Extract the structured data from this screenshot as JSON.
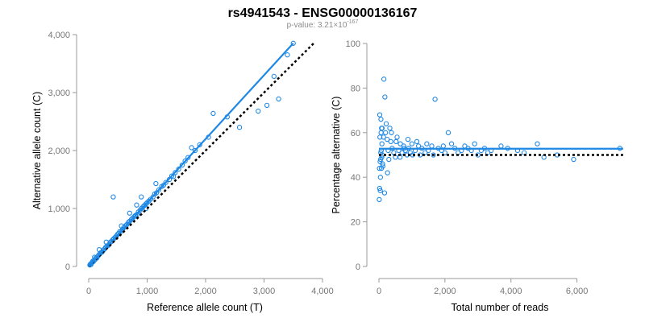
{
  "title": "rs4941543 - ENSG00000136167",
  "pvalue": {
    "prefix": "p-value: 3.21×10",
    "exponent": "-167"
  },
  "colors": {
    "points": "#1e88e5",
    "reference": "#000000",
    "ticks": "#777777"
  },
  "chart_data": [
    {
      "type": "scatter",
      "xlabel": "Reference allele count (T)",
      "ylabel": "Alternative allele count (C)",
      "xlim": [
        0,
        4000
      ],
      "ylim": [
        0,
        4000
      ],
      "xticks": [
        0,
        1000,
        2000,
        3000,
        4000
      ],
      "yticks": [
        0,
        1000,
        2000,
        3000,
        4000
      ],
      "xtick_labels": [
        "0",
        "1,000",
        "2,000",
        "3,000",
        "4,000"
      ],
      "ytick_labels": [
        "0",
        "1,000",
        "2,000",
        "3,000",
        "4,000"
      ],
      "fit_line": {
        "slope": 1.1,
        "intercept": 0,
        "x_range": [
          0,
          3500
        ]
      },
      "reference_line": {
        "slope": 1.0,
        "intercept": 0,
        "x_range": [
          0,
          3850
        ]
      },
      "points": [
        [
          20,
          25
        ],
        [
          30,
          40
        ],
        [
          40,
          35
        ],
        [
          50,
          60
        ],
        [
          60,
          70
        ],
        [
          70,
          90
        ],
        [
          80,
          85
        ],
        [
          95,
          110
        ],
        [
          110,
          120
        ],
        [
          125,
          150
        ],
        [
          140,
          145
        ],
        [
          160,
          180
        ],
        [
          175,
          200
        ],
        [
          190,
          215
        ],
        [
          210,
          240
        ],
        [
          230,
          250
        ],
        [
          250,
          280
        ],
        [
          270,
          300
        ],
        [
          290,
          330
        ],
        [
          310,
          350
        ],
        [
          330,
          360
        ],
        [
          350,
          380
        ],
        [
          370,
          420
        ],
        [
          390,
          430
        ],
        [
          410,
          460
        ],
        [
          430,
          480
        ],
        [
          450,
          500
        ],
        [
          470,
          520
        ],
        [
          490,
          550
        ],
        [
          510,
          570
        ],
        [
          530,
          600
        ],
        [
          560,
          610
        ],
        [
          580,
          640
        ],
        [
          600,
          670
        ],
        [
          630,
          700
        ],
        [
          650,
          720
        ],
        [
          680,
          760
        ],
        [
          700,
          780
        ],
        [
          730,
          810
        ],
        [
          750,
          830
        ],
        [
          780,
          860
        ],
        [
          800,
          880
        ],
        [
          830,
          900
        ],
        [
          850,
          940
        ],
        [
          880,
          970
        ],
        [
          900,
          1000
        ],
        [
          930,
          1030
        ],
        [
          950,
          1050
        ],
        [
          980,
          1080
        ],
        [
          1000,
          1100
        ],
        [
          1030,
          1130
        ],
        [
          1060,
          1160
        ],
        [
          1100,
          1200
        ],
        [
          1130,
          1250
        ],
        [
          1160,
          1270
        ],
        [
          1200,
          1320
        ],
        [
          1250,
          1380
        ],
        [
          1280,
          1400
        ],
        [
          1320,
          1450
        ],
        [
          1380,
          1500
        ],
        [
          1420,
          1560
        ],
        [
          1480,
          1620
        ],
        [
          1540,
          1680
        ],
        [
          1600,
          1750
        ],
        [
          1650,
          1820
        ],
        [
          1700,
          1880
        ],
        [
          1760,
          2050
        ],
        [
          1820,
          2000
        ],
        [
          1900,
          2100
        ],
        [
          2050,
          2230
        ],
        [
          100,
          160
        ],
        [
          180,
          290
        ],
        [
          300,
          420
        ],
        [
          420,
          1200
        ],
        [
          560,
          700
        ],
        [
          900,
          1200
        ],
        [
          1150,
          1430
        ],
        [
          1450,
          1550
        ],
        [
          700,
          920
        ],
        [
          820,
          1060
        ],
        [
          2130,
          2640
        ],
        [
          2370,
          2580
        ],
        [
          2580,
          2400
        ],
        [
          2900,
          2680
        ],
        [
          3050,
          2780
        ],
        [
          3170,
          3280
        ],
        [
          3250,
          2890
        ],
        [
          3400,
          3650
        ],
        [
          3500,
          3850
        ],
        [
          980,
          1000
        ]
      ]
    },
    {
      "type": "scatter",
      "xlabel": "Total number of reads",
      "ylabel": "Percentage alternative (C)",
      "xlim": [
        0,
        7500
      ],
      "ylim": [
        0,
        100
      ],
      "xticks": [
        0,
        2000,
        4000,
        6000
      ],
      "yticks": [
        0,
        20,
        40,
        60,
        80,
        100
      ],
      "xtick_labels": [
        "0",
        "2,000",
        "4,000",
        "6,000"
      ],
      "ytick_labels": [
        "0",
        "20",
        "40",
        "60",
        "80",
        "100"
      ],
      "fit_line": {
        "y": 52.8,
        "x_range": [
          0,
          7400
        ]
      },
      "reference_line": {
        "y": 50,
        "x_range": [
          0,
          7400
        ]
      },
      "points": [
        [
          20,
          35
        ],
        [
          40,
          34
        ],
        [
          60,
          66
        ],
        [
          80,
          62
        ],
        [
          50,
          48
        ],
        [
          70,
          52
        ],
        [
          90,
          55
        ],
        [
          100,
          50
        ],
        [
          110,
          46
        ],
        [
          30,
          58
        ],
        [
          150,
          84
        ],
        [
          170,
          33
        ],
        [
          180,
          76
        ],
        [
          200,
          60
        ],
        [
          220,
          64
        ],
        [
          250,
          57
        ],
        [
          280,
          52
        ],
        [
          300,
          48
        ],
        [
          330,
          62
        ],
        [
          360,
          56
        ],
        [
          400,
          53
        ],
        [
          450,
          51
        ],
        [
          500,
          49
        ],
        [
          550,
          58
        ],
        [
          600,
          52
        ],
        [
          650,
          55
        ],
        [
          700,
          51
        ],
        [
          750,
          54
        ],
        [
          800,
          52
        ],
        [
          850,
          50
        ],
        [
          900,
          53
        ],
        [
          950,
          51
        ],
        [
          1000,
          55
        ],
        [
          1100,
          52
        ],
        [
          1200,
          54
        ],
        [
          1300,
          53
        ],
        [
          1400,
          51
        ],
        [
          1500,
          52
        ],
        [
          1600,
          54
        ],
        [
          1700,
          75
        ],
        [
          1800,
          53
        ],
        [
          1900,
          52
        ],
        [
          2000,
          51
        ],
        [
          2100,
          60
        ],
        [
          2200,
          55
        ],
        [
          2300,
          53
        ],
        [
          2400,
          51
        ],
        [
          2500,
          52
        ],
        [
          2600,
          54
        ],
        [
          2700,
          53
        ],
        [
          2800,
          52
        ],
        [
          2900,
          55
        ],
        [
          3000,
          50
        ],
        [
          3100,
          52
        ],
        [
          3200,
          53
        ],
        [
          3300,
          51
        ],
        [
          3400,
          52
        ],
        [
          3700,
          54
        ],
        [
          3900,
          53
        ],
        [
          4200,
          52
        ],
        [
          4400,
          51
        ],
        [
          4800,
          55
        ],
        [
          5000,
          49
        ],
        [
          5400,
          50
        ],
        [
          5900,
          48
        ],
        [
          7300,
          53
        ],
        [
          120,
          45
        ],
        [
          140,
          58
        ],
        [
          260,
          42
        ],
        [
          380,
          60
        ],
        [
          520,
          56
        ],
        [
          640,
          49
        ],
        [
          760,
          53
        ],
        [
          880,
          57
        ],
        [
          1020,
          50
        ],
        [
          1150,
          56
        ],
        [
          1250,
          50
        ],
        [
          1450,
          55
        ],
        [
          1650,
          50
        ],
        [
          1950,
          54
        ],
        [
          10,
          30
        ],
        [
          15,
          44
        ],
        [
          25,
          68
        ],
        [
          35,
          47
        ],
        [
          45,
          40
        ],
        [
          55,
          51
        ],
        [
          65,
          60
        ],
        [
          75,
          44
        ],
        [
          85,
          49
        ],
        [
          95,
          62
        ]
      ]
    }
  ]
}
